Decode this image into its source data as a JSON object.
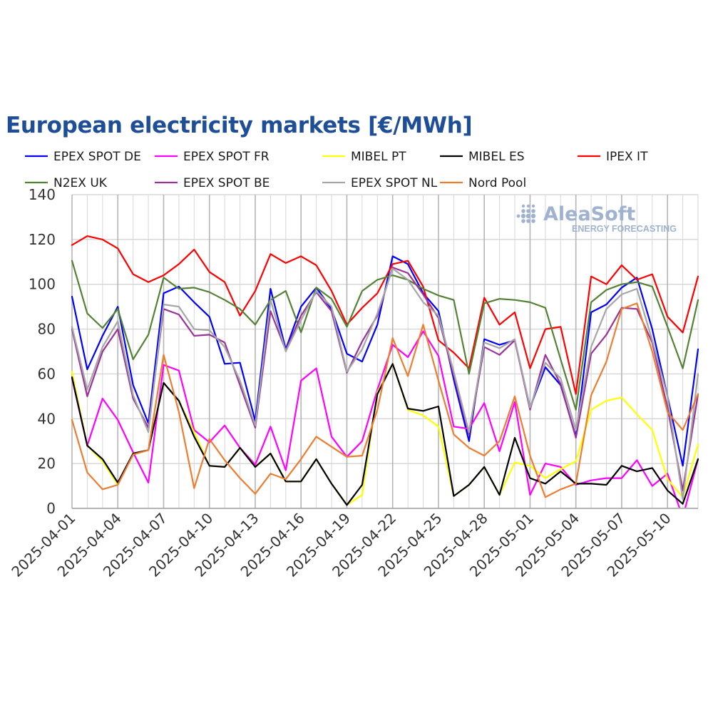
{
  "chart_data": {
    "type": "line",
    "title": "European electricity markets [€/MWh]",
    "xlabel": "",
    "ylabel": "",
    "ylim": [
      0,
      140
    ],
    "yticks": [
      0,
      20,
      40,
      60,
      80,
      100,
      120,
      140
    ],
    "grid": true,
    "legend_position": "top",
    "x": [
      "2025-04-01",
      "2025-04-02",
      "2025-04-03",
      "2025-04-04",
      "2025-04-05",
      "2025-04-06",
      "2025-04-07",
      "2025-04-08",
      "2025-04-09",
      "2025-04-10",
      "2025-04-11",
      "2025-04-12",
      "2025-04-13",
      "2025-04-14",
      "2025-04-15",
      "2025-04-16",
      "2025-04-17",
      "2025-04-18",
      "2025-04-19",
      "2025-04-20",
      "2025-04-21",
      "2025-04-22",
      "2025-04-23",
      "2025-04-24",
      "2025-04-25",
      "2025-04-26",
      "2025-04-27",
      "2025-04-28",
      "2025-04-29",
      "2025-04-30",
      "2025-05-01",
      "2025-05-02",
      "2025-05-03",
      "2025-05-04",
      "2025-05-05",
      "2025-05-06",
      "2025-05-07",
      "2025-05-08",
      "2025-05-09",
      "2025-05-10",
      "2025-05-11",
      "2025-05-12"
    ],
    "x_tick_labels": [
      "2025-04-01",
      "2025-04-04",
      "2025-04-07",
      "2025-04-10",
      "2025-04-13",
      "2025-04-16",
      "2025-04-19",
      "2025-04-22",
      "2025-04-25",
      "2025-04-28",
      "2025-05-01",
      "2025-05-04",
      "2025-05-07",
      "2025-05-10"
    ],
    "series": [
      {
        "name": "EPEX SPOT DE",
        "color": "#0000ff",
        "values": [
          94.5,
          62,
          77,
          90,
          55,
          38,
          96,
          99,
          92,
          85.5,
          64.5,
          65,
          39,
          98,
          71,
          90,
          98.5,
          89,
          69,
          65.5,
          82,
          112.5,
          109,
          96,
          88,
          57.5,
          30,
          75.5,
          73,
          75,
          45,
          63,
          55,
          32,
          87.5,
          91,
          98.5,
          103,
          80,
          50,
          19,
          71
        ]
      },
      {
        "name": "EPEX SPOT FR",
        "color": "#ff00ff",
        "values": [
          58,
          28,
          49,
          39.5,
          25,
          11.5,
          64,
          61.5,
          35,
          29.5,
          37,
          27,
          19.5,
          36.5,
          17,
          57,
          62.5,
          32,
          23,
          30,
          53,
          73,
          67.5,
          79,
          68,
          36.5,
          35.5,
          47,
          25.5,
          47.5,
          6,
          20,
          18.5,
          10.5,
          12.5,
          13.5,
          13.5,
          21.5,
          10,
          15.5,
          -4,
          22
        ]
      },
      {
        "name": "MIBEL PT",
        "color": "#ffff00",
        "values": [
          61,
          28,
          21,
          10.5,
          24.5,
          26,
          56,
          48,
          34,
          19,
          18.5,
          27,
          18.5,
          24.5,
          12,
          12,
          22,
          11,
          1.5,
          6,
          52,
          64.5,
          44,
          41.5,
          36.5,
          5.5,
          10.5,
          18.5,
          6,
          20.5,
          19,
          13.5,
          17.5,
          21,
          44,
          48,
          49.5,
          42,
          35,
          13,
          5,
          28.5
        ]
      },
      {
        "name": "MIBEL ES",
        "color": "#000000",
        "values": [
          58.5,
          28,
          22,
          11.5,
          24.5,
          26,
          56,
          48,
          32,
          19,
          18.5,
          27,
          18.5,
          24.5,
          12,
          12,
          22,
          11,
          1.5,
          10.5,
          51,
          64.5,
          44.5,
          43.5,
          45.5,
          5.5,
          10.5,
          18.5,
          6,
          31.5,
          13.5,
          11,
          16.5,
          11,
          11,
          10.5,
          19,
          16.5,
          18,
          8,
          2,
          22
        ]
      },
      {
        "name": "IPEX IT",
        "color": "#ff0000",
        "values": [
          117.5,
          121.5,
          120,
          116,
          104.5,
          101,
          104,
          109,
          115.5,
          105.5,
          101,
          86,
          97,
          113.5,
          109.5,
          112.5,
          108.5,
          97,
          82,
          89.5,
          96,
          109,
          110.5,
          99,
          75,
          69.5,
          62.5,
          94,
          82,
          87.5,
          62.5,
          80,
          81,
          51,
          103.5,
          100,
          108.5,
          102,
          104.5,
          85.5,
          78.5,
          103.5
        ]
      },
      {
        "name": "N2EX UK",
        "color": "#548235",
        "values": [
          110.5,
          87,
          80.5,
          89,
          66.5,
          77.5,
          103,
          98,
          98.5,
          96.5,
          93,
          89,
          82,
          93,
          97,
          78.5,
          98.5,
          93.5,
          81,
          97,
          102,
          104,
          102,
          98,
          95,
          93,
          60,
          91.5,
          93.5,
          93,
          92,
          89.5,
          66.5,
          44,
          92,
          97.5,
          100,
          101,
          99,
          81,
          62.5,
          93
        ]
      },
      {
        "name": "EPEX SPOT BE",
        "color": "#993399",
        "values": [
          80,
          50,
          70,
          80,
          49,
          36,
          89,
          86.5,
          77,
          77.5,
          74,
          55,
          36,
          88,
          70.5,
          86,
          96.5,
          88,
          60.5,
          74.5,
          86,
          107.5,
          105,
          95.5,
          85,
          59.5,
          33,
          72,
          68.5,
          75,
          44,
          68.5,
          55.5,
          31.5,
          69,
          77.5,
          89.5,
          89,
          74,
          45,
          8,
          51
        ]
      },
      {
        "name": "EPEX SPOT NL",
        "color": "#a6a6a6",
        "values": [
          81,
          53,
          72,
          83.5,
          50.5,
          34,
          91,
          90,
          80,
          79.5,
          72,
          57,
          37,
          93,
          70,
          84,
          97,
          90,
          61,
          71,
          87,
          107,
          102,
          92,
          86,
          61,
          34,
          74,
          71.5,
          75.5,
          45,
          65,
          58,
          35,
          72,
          89,
          95.5,
          98,
          75,
          50,
          4,
          60
        ]
      },
      {
        "name": "Nord Pool",
        "color": "#ed7d31",
        "values": [
          39.5,
          16,
          8.5,
          10.5,
          24,
          26,
          68.5,
          43,
          9,
          31,
          21.5,
          13.5,
          6.5,
          15.5,
          13,
          22,
          32,
          27.5,
          23,
          23.5,
          44,
          76,
          59,
          82,
          57,
          33,
          27,
          23.5,
          30,
          50,
          23.5,
          5,
          8.5,
          11,
          50.5,
          65.5,
          89,
          91.5,
          70,
          43,
          35,
          51
        ]
      }
    ]
  },
  "branding": {
    "logo_text": "AleaSoft",
    "logo_subtext": "ENERGY FORECASTING"
  }
}
